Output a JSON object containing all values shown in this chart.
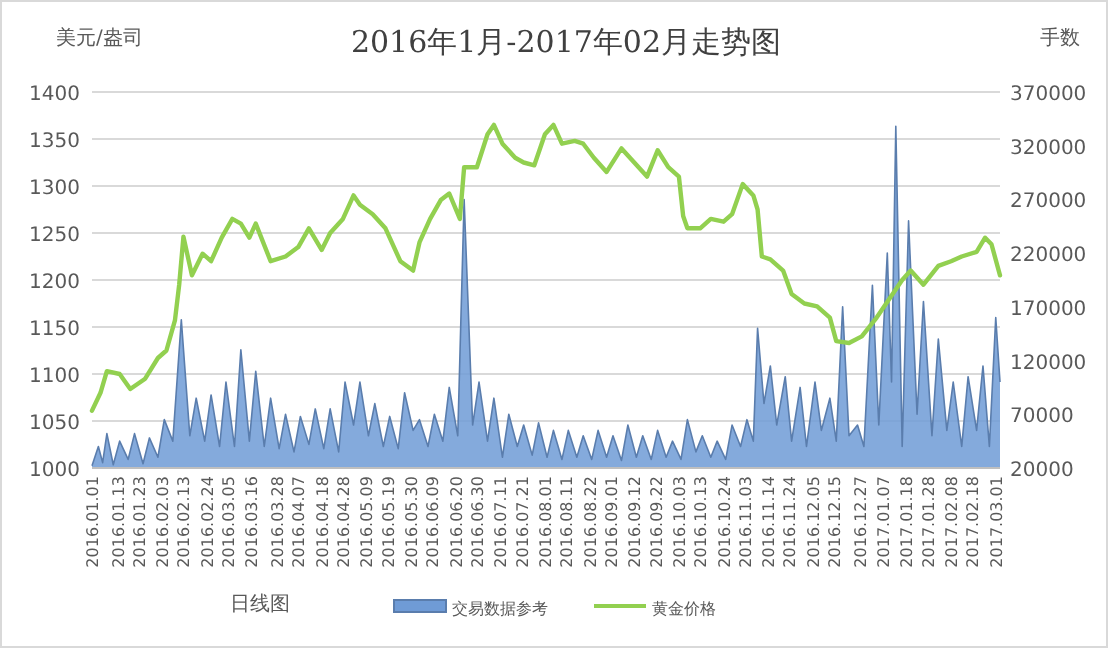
{
  "chart_data": {
    "type": "line",
    "title": "2016年1月-2017年02月走势图",
    "ylabel": "美元/盎司",
    "y2label": "手数",
    "annotations": [
      "日线图"
    ],
    "xlim": [
      "2016-01-01",
      "2017-03-03"
    ],
    "xticks": [
      {
        "value": "2016-01-01",
        "label": "2016.01.01"
      },
      {
        "value": "2016-01-13",
        "label": "2016.01.13"
      },
      {
        "value": "2016-01-23",
        "label": "2016.01.23"
      },
      {
        "value": "2016-02-03",
        "label": "2016.02.03"
      },
      {
        "value": "2016-02-13",
        "label": "2016.02.13"
      },
      {
        "value": "2016-02-24",
        "label": "2016.02.24"
      },
      {
        "value": "2016-03-05",
        "label": "2016.03.05"
      },
      {
        "value": "2016-03-16",
        "label": "2016.03.16"
      },
      {
        "value": "2016-03-28",
        "label": "2016.03.28"
      },
      {
        "value": "2016-04-07",
        "label": "2016.04.07"
      },
      {
        "value": "2016-04-18",
        "label": "2016.04.18"
      },
      {
        "value": "2016-04-28",
        "label": "2016.04.28"
      },
      {
        "value": "2016-05-09",
        "label": "2016.05.09"
      },
      {
        "value": "2016-05-19",
        "label": "2016.05.19"
      },
      {
        "value": "2016-05-30",
        "label": "2016.05.30"
      },
      {
        "value": "2016-06-09",
        "label": "2016.06.09"
      },
      {
        "value": "2016-06-20",
        "label": "2016.06.20"
      },
      {
        "value": "2016-06-30",
        "label": "2016.06.30"
      },
      {
        "value": "2016-07-11",
        "label": "2016.07.11"
      },
      {
        "value": "2016-07-21",
        "label": "2016.07.21"
      },
      {
        "value": "2016-08-01",
        "label": "2016.08.01"
      },
      {
        "value": "2016-08-11",
        "label": "2016.08.11"
      },
      {
        "value": "2016-08-22",
        "label": "2016.08.22"
      },
      {
        "value": "2016-09-01",
        "label": "2016.09.01"
      },
      {
        "value": "2016-09-12",
        "label": "2016.09.12"
      },
      {
        "value": "2016-09-22",
        "label": "2016.09.22"
      },
      {
        "value": "2016-10-03",
        "label": "2016.10.03"
      },
      {
        "value": "2016-10-13",
        "label": "2016.10.13"
      },
      {
        "value": "2016-10-24",
        "label": "2016.10.24"
      },
      {
        "value": "2016-11-03",
        "label": "2016.11.03"
      },
      {
        "value": "2016-11-14",
        "label": "2016.11.14"
      },
      {
        "value": "2016-11-24",
        "label": "2016.11.24"
      },
      {
        "value": "2016-12-05",
        "label": "2016.12.05"
      },
      {
        "value": "2016-12-15",
        "label": "2016.12.15"
      },
      {
        "value": "2016-12-27",
        "label": "2016.12.27"
      },
      {
        "value": "2017-01-07",
        "label": "2017.01.07"
      },
      {
        "value": "2017-01-18",
        "label": "2017.01.18"
      },
      {
        "value": "2017-01-28",
        "label": "2017.01.28"
      },
      {
        "value": "2017-02-08",
        "label": "2017.02.08"
      },
      {
        "value": "2017-02-18",
        "label": "2017.02.18"
      },
      {
        "value": "2017-03-01",
        "label": "2017.03.01"
      }
    ],
    "ylim": [
      1000,
      1400
    ],
    "yticks": [
      1000,
      1050,
      1100,
      1150,
      1200,
      1250,
      1300,
      1350,
      1400
    ],
    "y2lim": [
      20000,
      370000
    ],
    "y2ticks": [
      20000,
      70000,
      120000,
      170000,
      220000,
      270000,
      320000,
      370000
    ],
    "grid": "y",
    "legend": "bottom",
    "series": [
      {
        "name": "交易数据参考",
        "type": "area",
        "axis": "y2",
        "color": "#6f9bd6",
        "x": [
          "2016-01-01",
          "2016-01-04",
          "2016-01-06",
          "2016-01-08",
          "2016-01-11",
          "2016-01-14",
          "2016-01-18",
          "2016-01-21",
          "2016-01-25",
          "2016-01-28",
          "2016-02-01",
          "2016-02-04",
          "2016-02-08",
          "2016-02-12",
          "2016-02-16",
          "2016-02-19",
          "2016-02-23",
          "2016-02-26",
          "2016-03-01",
          "2016-03-04",
          "2016-03-08",
          "2016-03-11",
          "2016-03-15",
          "2016-03-18",
          "2016-03-22",
          "2016-03-25",
          "2016-03-29",
          "2016-04-01",
          "2016-04-05",
          "2016-04-08",
          "2016-04-12",
          "2016-04-15",
          "2016-04-19",
          "2016-04-22",
          "2016-04-26",
          "2016-04-29",
          "2016-05-03",
          "2016-05-06",
          "2016-05-10",
          "2016-05-13",
          "2016-05-17",
          "2016-05-20",
          "2016-05-24",
          "2016-05-27",
          "2016-05-31",
          "2016-06-03",
          "2016-06-07",
          "2016-06-10",
          "2016-06-14",
          "2016-06-17",
          "2016-06-21",
          "2016-06-24",
          "2016-06-28",
          "2016-07-01",
          "2016-07-05",
          "2016-07-08",
          "2016-07-12",
          "2016-07-15",
          "2016-07-19",
          "2016-07-22",
          "2016-07-26",
          "2016-07-29",
          "2016-08-02",
          "2016-08-05",
          "2016-08-09",
          "2016-08-12",
          "2016-08-16",
          "2016-08-19",
          "2016-08-23",
          "2016-08-26",
          "2016-08-30",
          "2016-09-02",
          "2016-09-06",
          "2016-09-09",
          "2016-09-13",
          "2016-09-16",
          "2016-09-20",
          "2016-09-23",
          "2016-09-27",
          "2016-09-30",
          "2016-10-04",
          "2016-10-07",
          "2016-10-11",
          "2016-10-14",
          "2016-10-18",
          "2016-10-21",
          "2016-10-25",
          "2016-10-28",
          "2016-11-01",
          "2016-11-04",
          "2016-11-07",
          "2016-11-09",
          "2016-11-12",
          "2016-11-15",
          "2016-11-18",
          "2016-11-22",
          "2016-11-25",
          "2016-11-29",
          "2016-12-02",
          "2016-12-06",
          "2016-12-09",
          "2016-12-13",
          "2016-12-16",
          "2016-12-19",
          "2016-12-22",
          "2016-12-26",
          "2016-12-29",
          "2017-01-02",
          "2017-01-05",
          "2017-01-09",
          "2017-01-11",
          "2017-01-13",
          "2017-01-16",
          "2017-01-19",
          "2017-01-23",
          "2017-01-26",
          "2017-01-30",
          "2017-02-02",
          "2017-02-06",
          "2017-02-09",
          "2017-02-13",
          "2017-02-16",
          "2017-02-20",
          "2017-02-23",
          "2017-02-26",
          "2017-03-01",
          "2017-03-03"
        ],
        "values": [
          22000,
          40000,
          25000,
          52000,
          23000,
          45000,
          28000,
          52000,
          24000,
          48000,
          30000,
          65000,
          45000,
          158000,
          50000,
          85000,
          45000,
          88000,
          40000,
          100000,
          40000,
          130000,
          45000,
          110000,
          40000,
          85000,
          38000,
          70000,
          35000,
          68000,
          42000,
          75000,
          38000,
          75000,
          35000,
          100000,
          60000,
          100000,
          50000,
          80000,
          40000,
          68000,
          38000,
          90000,
          55000,
          65000,
          40000,
          70000,
          45000,
          95000,
          50000,
          270000,
          60000,
          100000,
          45000,
          85000,
          30000,
          70000,
          40000,
          60000,
          32000,
          62000,
          30000,
          55000,
          28000,
          55000,
          30000,
          50000,
          28000,
          55000,
          30000,
          50000,
          27000,
          60000,
          30000,
          50000,
          28000,
          55000,
          30000,
          45000,
          28000,
          65000,
          35000,
          50000,
          30000,
          45000,
          28000,
          60000,
          40000,
          65000,
          45000,
          150000,
          80000,
          115000,
          60000,
          105000,
          45000,
          95000,
          40000,
          100000,
          55000,
          85000,
          45000,
          170000,
          50000,
          60000,
          40000,
          190000,
          60000,
          220000,
          100000,
          338000,
          40000,
          250000,
          70000,
          175000,
          50000,
          140000,
          55000,
          100000,
          40000,
          105000,
          55000,
          115000,
          40000,
          160000,
          100000
        ]
      },
      {
        "name": "黄金价格",
        "color": "#92d050",
        "x": [
          "2016-01-01",
          "2016-01-05",
          "2016-01-08",
          "2016-01-14",
          "2016-01-19",
          "2016-01-26",
          "2016-02-01",
          "2016-02-05",
          "2016-02-09",
          "2016-02-11",
          "2016-02-13",
          "2016-02-17",
          "2016-02-22",
          "2016-02-26",
          "2016-03-02",
          "2016-03-07",
          "2016-03-11",
          "2016-03-15",
          "2016-03-18",
          "2016-03-25",
          "2016-04-01",
          "2016-04-07",
          "2016-04-12",
          "2016-04-18",
          "2016-04-22",
          "2016-04-28",
          "2016-05-03",
          "2016-05-06",
          "2016-05-12",
          "2016-05-18",
          "2016-05-25",
          "2016-05-31",
          "2016-06-03",
          "2016-06-08",
          "2016-06-13",
          "2016-06-17",
          "2016-06-22",
          "2016-06-24",
          "2016-06-30",
          "2016-07-05",
          "2016-07-08",
          "2016-07-12",
          "2016-07-18",
          "2016-07-22",
          "2016-07-27",
          "2016-08-01",
          "2016-08-05",
          "2016-08-09",
          "2016-08-15",
          "2016-08-19",
          "2016-08-24",
          "2016-08-30",
          "2016-09-06",
          "2016-09-12",
          "2016-09-18",
          "2016-09-23",
          "2016-09-28",
          "2016-10-03",
          "2016-10-05",
          "2016-10-07",
          "2016-10-13",
          "2016-10-18",
          "2016-10-24",
          "2016-10-28",
          "2016-11-02",
          "2016-11-07",
          "2016-11-09",
          "2016-11-11",
          "2016-11-15",
          "2016-11-21",
          "2016-11-25",
          "2016-12-01",
          "2016-12-07",
          "2016-12-13",
          "2016-12-16",
          "2016-12-22",
          "2016-12-28",
          "2017-01-04",
          "2017-01-10",
          "2017-01-16",
          "2017-01-20",
          "2017-01-26",
          "2017-02-02",
          "2017-02-08",
          "2017-02-13",
          "2017-02-20",
          "2017-02-24",
          "2017-02-27",
          "2017-03-03"
        ],
        "values": [
          1061,
          1080,
          1103,
          1100,
          1084,
          1095,
          1117,
          1125,
          1157,
          1195,
          1246,
          1205,
          1228,
          1220,
          1245,
          1265,
          1260,
          1245,
          1260,
          1220,
          1225,
          1235,
          1255,
          1232,
          1250,
          1265,
          1290,
          1280,
          1270,
          1255,
          1220,
          1210,
          1240,
          1265,
          1285,
          1292,
          1265,
          1320,
          1320,
          1355,
          1365,
          1345,
          1330,
          1325,
          1322,
          1355,
          1365,
          1345,
          1348,
          1345,
          1330,
          1315,
          1340,
          1325,
          1310,
          1338,
          1320,
          1310,
          1268,
          1255,
          1255,
          1265,
          1262,
          1270,
          1302,
          1290,
          1275,
          1225,
          1222,
          1210,
          1185,
          1175,
          1172,
          1160,
          1135,
          1133,
          1140,
          1160,
          1180,
          1200,
          1210,
          1195,
          1215,
          1220,
          1225,
          1230,
          1245,
          1238,
          1205
        ]
      }
    ]
  }
}
